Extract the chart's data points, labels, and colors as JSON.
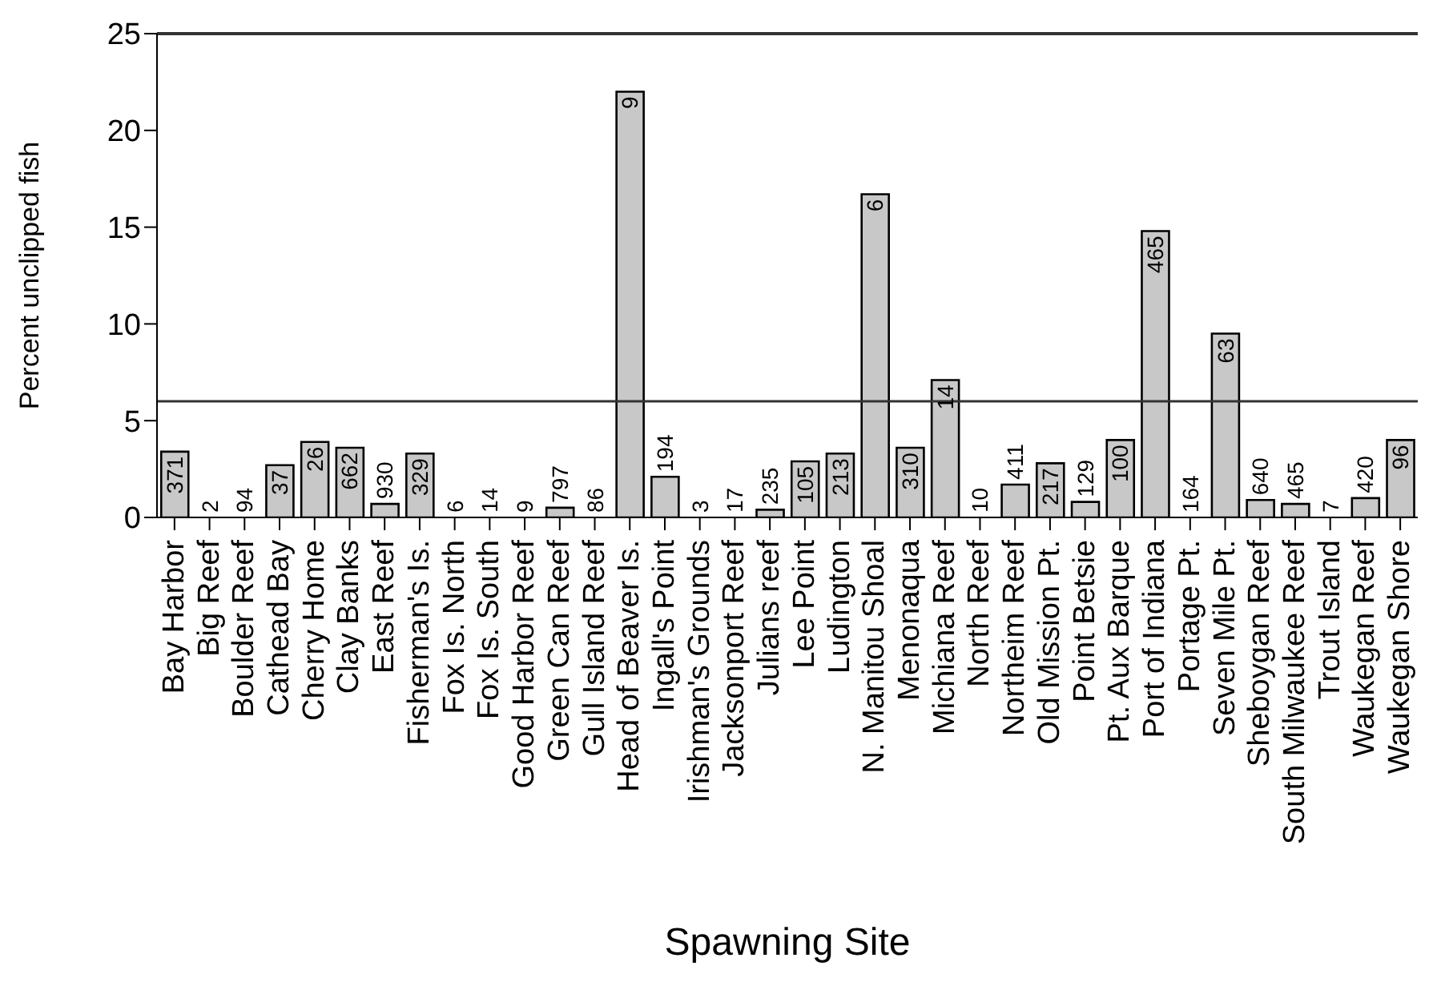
{
  "chart_data": {
    "type": "bar",
    "xlabel": "Spawning Site",
    "ylabel": "Percent unclipped fish",
    "categories": [
      "Bay Harbor",
      "Big Reef",
      "Boulder Reef",
      "Cathead Bay",
      "Cherry Home",
      "Clay Banks",
      "East Reef",
      "Fisherman's Is.",
      "Fox Is. North",
      "Fox Is. South",
      "Good Harbor Reef",
      "Green Can Reef",
      "Gull Island Reef",
      "Head of Beaver Is.",
      "Ingall's Point",
      "Irishman's Grounds",
      "Jacksonport Reef",
      "Julians reef",
      "Lee Point",
      "Ludington",
      "N. Manitou Shoal",
      "Menonaqua",
      "Michiana Reef",
      "North Reef",
      "Northeim Reef",
      "Old Mission Pt.",
      "Point Betsie",
      "Pt. Aux Barque",
      "Port of Indiana",
      "Portage Pt.",
      "Seven Mile Pt.",
      "Sheboygan Reef",
      "South Milwaukee Reef",
      "Trout Island",
      "Waukegan Reef",
      "Waukegan Shore"
    ],
    "values": [
      3.4,
      0,
      0,
      2.7,
      3.9,
      3.6,
      0.7,
      3.3,
      0,
      0,
      0,
      0.5,
      0,
      22,
      2.1,
      0,
      0,
      0.4,
      2.9,
      3.3,
      16.7,
      3.6,
      7.1,
      0,
      1.7,
      2.8,
      0.8,
      4,
      14.8,
      0,
      9.5,
      0.9,
      0.7,
      0,
      1,
      4
    ],
    "annotations": [
      {
        "text": "371",
        "x": "Bay Harbor",
        "y": 3.4
      },
      {
        "text": "2",
        "x": "Big Reef",
        "y": 0
      },
      {
        "text": "94",
        "x": "Boulder Reef",
        "y": 0
      },
      {
        "text": "37",
        "x": "Cathead Bay",
        "y": 2.7
      },
      {
        "text": "26",
        "x": "Cherry Home",
        "y": 3.9
      },
      {
        "text": "662",
        "x": "Clay Banks",
        "y": 3.6
      },
      {
        "text": "930",
        "x": "East Reef",
        "y": 0.7
      },
      {
        "text": "329",
        "x": "Fisherman's Is.",
        "y": 3.3
      },
      {
        "text": "6",
        "x": "Fox Is. North",
        "y": 0
      },
      {
        "text": "14",
        "x": "Fox Is. South",
        "y": 0
      },
      {
        "text": "9",
        "x": "Good Harbor Reef",
        "y": 0
      },
      {
        "text": "797",
        "x": "Green Can Reef",
        "y": 0.5
      },
      {
        "text": "86",
        "x": "Gull Island Reef",
        "y": 0
      },
      {
        "text": "9",
        "x": "Head of Beaver Is.",
        "y": 22
      },
      {
        "text": "194",
        "x": "Ingall's Point",
        "y": 2.1
      },
      {
        "text": "3",
        "x": "Irishman's Grounds",
        "y": 0
      },
      {
        "text": "17",
        "x": "Jacksonport Reef",
        "y": 0
      },
      {
        "text": "235",
        "x": "Julians reef",
        "y": 0.4
      },
      {
        "text": "105",
        "x": "Lee Point",
        "y": 2.9
      },
      {
        "text": "213",
        "x": "Ludington",
        "y": 3.3
      },
      {
        "text": "6",
        "x": "N. Manitou Shoal",
        "y": 16.7
      },
      {
        "text": "310",
        "x": "Menonaqua",
        "y": 3.6
      },
      {
        "text": "14",
        "x": "Michiana Reef",
        "y": 7.1
      },
      {
        "text": "10",
        "x": "North Reef",
        "y": 0
      },
      {
        "text": "411",
        "x": "Northeim Reef",
        "y": 1.7
      },
      {
        "text": "217",
        "x": "Old Mission Pt.",
        "y": 2.8
      },
      {
        "text": "129",
        "x": "Point Betsie",
        "y": 0.8
      },
      {
        "text": "100",
        "x": "Pt. Aux Barque",
        "y": 4
      },
      {
        "text": "465",
        "x": "Port of Indiana",
        "y": 14.8
      },
      {
        "text": "164",
        "x": "Portage Pt.",
        "y": 0
      },
      {
        "text": "63",
        "x": "Seven Mile Pt.",
        "y": 9.5
      },
      {
        "text": "640",
        "x": "Sheboygan Reef",
        "y": 0.9
      },
      {
        "text": "465",
        "x": "South Milwaukee Reef",
        "y": 0.7
      },
      {
        "text": "7",
        "x": "Trout Island",
        "y": 0
      },
      {
        "text": "420",
        "x": "Waukegan Reef",
        "y": 1
      },
      {
        "text": "96",
        "x": "Waukegan Shore",
        "y": 4
      }
    ],
    "color": "#c8c8c8",
    "ylim": [
      0,
      25
    ],
    "yticks": [
      0,
      5,
      10,
      15,
      20,
      25
    ],
    "ref_lines": [
      {
        "axis": "y",
        "value": 6,
        "color": "#333333"
      }
    ],
    "grid": false,
    "legend": false
  }
}
